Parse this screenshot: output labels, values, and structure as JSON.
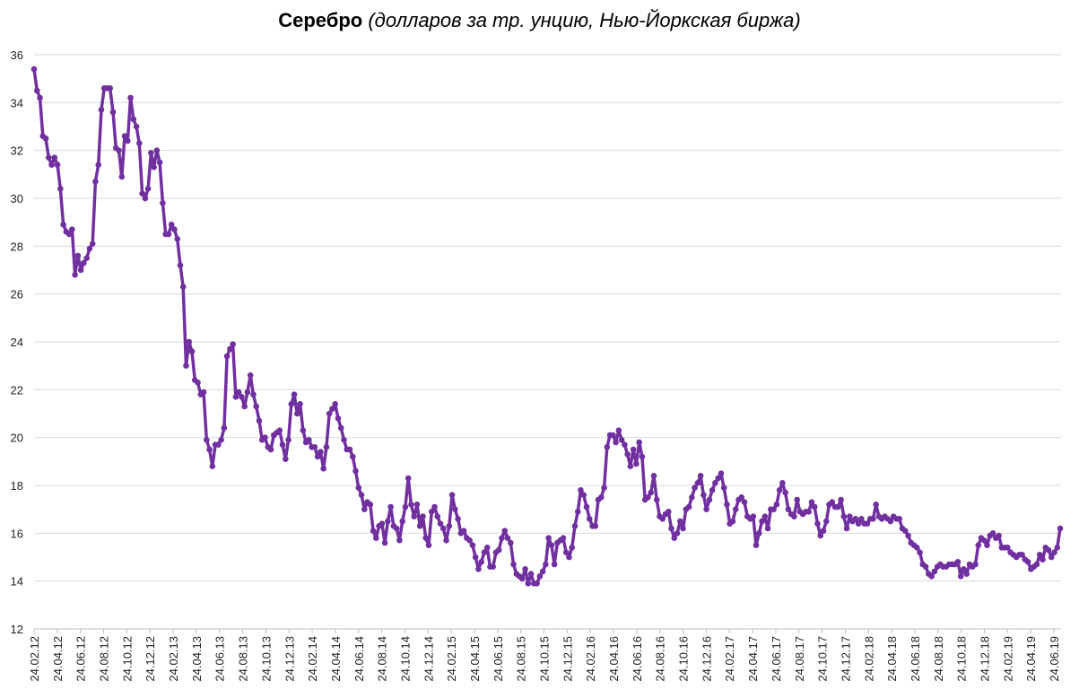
{
  "chart_data": {
    "type": "line",
    "title": "Серебро",
    "subtitle": "(долларов за тр. унцию, Нью-Йоркская биржа)",
    "xlabel": "",
    "ylabel": "",
    "ylim": [
      12,
      36
    ],
    "yticks": [
      12,
      14,
      16,
      18,
      20,
      22,
      24,
      26,
      28,
      30,
      32,
      34,
      36
    ],
    "grid": true,
    "legend": "none",
    "color": "#7030a0",
    "xticks": [
      "24.02.12",
      "24.04.12",
      "24.06.12",
      "24.08.12",
      "24.10.12",
      "24.12.12",
      "24.02.13",
      "24.04.13",
      "24.06.13",
      "24.08.13",
      "24.10.13",
      "24.12.13",
      "24.02.14",
      "24.04.14",
      "24.06.14",
      "24.08.14",
      "24.10.14",
      "24.12.14",
      "24.02.15",
      "24.04.15",
      "24.06.15",
      "24.08.15",
      "24.10.15",
      "24.12.15",
      "24.02.16",
      "24.04.16",
      "24.06.16",
      "24.08.16",
      "24.10.16",
      "24.12.16",
      "24.02.17",
      "24.04.17",
      "24.06.17",
      "24.08.17",
      "24.10.17",
      "24.12.17",
      "24.02.18",
      "24.04.18",
      "24.06.18",
      "24.08.18",
      "24.10.18",
      "24.12.18",
      "24.02.19",
      "24.04.19",
      "24.06.19"
    ],
    "series": [
      {
        "name": "Серебро",
        "values": [
          35.4,
          34.5,
          34.2,
          32.6,
          32.5,
          31.7,
          31.4,
          31.7,
          31.4,
          30.4,
          28.9,
          28.6,
          28.5,
          28.7,
          26.8,
          27.6,
          27.0,
          27.3,
          27.5,
          27.9,
          28.1,
          30.7,
          31.4,
          33.7,
          34.6,
          34.6,
          34.6,
          33.6,
          32.1,
          32.0,
          30.9,
          32.6,
          32.4,
          34.2,
          33.3,
          33.0,
          32.3,
          30.2,
          30.0,
          30.4,
          31.9,
          31.3,
          32.0,
          31.5,
          29.8,
          28.5,
          28.5,
          28.9,
          28.7,
          28.3,
          27.2,
          26.3,
          23.0,
          24.0,
          23.6,
          22.4,
          22.3,
          21.8,
          21.9,
          19.9,
          19.5,
          18.8,
          19.7,
          19.7,
          19.9,
          20.4,
          23.4,
          23.7,
          23.9,
          21.7,
          21.9,
          21.7,
          21.3,
          21.9,
          22.6,
          21.8,
          21.3,
          20.7,
          19.9,
          20.0,
          19.6,
          19.5,
          20.1,
          20.2,
          20.3,
          19.7,
          19.1,
          19.9,
          21.4,
          21.8,
          21.0,
          21.4,
          20.3,
          19.8,
          19.9,
          19.6,
          19.6,
          19.2,
          19.4,
          18.7,
          19.6,
          21.0,
          21.2,
          21.4,
          20.8,
          20.4,
          19.9,
          19.5,
          19.5,
          19.2,
          18.6,
          17.9,
          17.6,
          17.0,
          17.3,
          17.2,
          16.1,
          15.8,
          16.3,
          16.4,
          15.6,
          16.5,
          17.1,
          16.3,
          16.2,
          15.7,
          16.5,
          17.1,
          18.3,
          17.2,
          16.7,
          17.2,
          16.3,
          16.7,
          15.8,
          15.5,
          16.9,
          17.1,
          16.7,
          16.4,
          16.2,
          15.7,
          16.3,
          17.6,
          17.0,
          16.6,
          16.0,
          16.1,
          15.8,
          15.7,
          15.5,
          15.0,
          14.5,
          14.8,
          15.2,
          15.4,
          14.6,
          14.6,
          15.2,
          15.3,
          15.8,
          16.1,
          15.8,
          15.6,
          14.7,
          14.3,
          14.2,
          14.1,
          14.5,
          13.9,
          14.3,
          13.9,
          13.9,
          14.2,
          14.4,
          14.7,
          15.8,
          15.5,
          14.7,
          15.6,
          15.7,
          15.8,
          15.2,
          15.0,
          15.4,
          16.3,
          16.9,
          17.8,
          17.6,
          17.1,
          16.6,
          16.3,
          16.3,
          17.4,
          17.5,
          17.9,
          19.6,
          20.1,
          20.1,
          19.8,
          20.3,
          19.9,
          19.7,
          19.3,
          18.8,
          19.5,
          18.9,
          19.8,
          19.2,
          17.4,
          17.5,
          17.7,
          18.4,
          17.4,
          16.7,
          16.6,
          16.8,
          16.9,
          16.2,
          15.8,
          16.0,
          16.5,
          16.2,
          17.0,
          17.1,
          17.5,
          17.9,
          18.1,
          18.4,
          17.6,
          17.0,
          17.4,
          17.8,
          18.1,
          18.3,
          18.5,
          17.9,
          17.2,
          16.4,
          16.5,
          17.0,
          17.4,
          17.5,
          17.3,
          16.7,
          16.6,
          16.7,
          15.5,
          16.0,
          16.5,
          16.7,
          16.2,
          17.0,
          17.0,
          17.2,
          17.8,
          18.1,
          17.7,
          17.0,
          16.8,
          16.7,
          17.4,
          16.9,
          16.8,
          16.9,
          16.9,
          17.3,
          17.1,
          16.4,
          15.9,
          16.1,
          16.5,
          17.2,
          17.3,
          17.1,
          17.1,
          17.4,
          16.7,
          16.2,
          16.7,
          16.5,
          16.6,
          16.4,
          16.6,
          16.4,
          16.4,
          16.6,
          16.6,
          17.2,
          16.7,
          16.6,
          16.7,
          16.6,
          16.5,
          16.7,
          16.6,
          16.6,
          16.2,
          16.1,
          15.9,
          15.6,
          15.5,
          15.4,
          15.2,
          14.7,
          14.6,
          14.3,
          14.2,
          14.4,
          14.6,
          14.7,
          14.6,
          14.6,
          14.7,
          14.7,
          14.7,
          14.8,
          14.2,
          14.5,
          14.3,
          14.7,
          14.6,
          14.7,
          15.5,
          15.8,
          15.7,
          15.5,
          15.9,
          16.0,
          15.8,
          15.9,
          15.4,
          15.4,
          15.4,
          15.2,
          15.1,
          15.0,
          15.1,
          15.1,
          14.9,
          14.8,
          14.5,
          14.6,
          14.7,
          15.1,
          14.9,
          15.4,
          15.3,
          15.0,
          15.2,
          15.4,
          16.2
        ]
      }
    ]
  }
}
